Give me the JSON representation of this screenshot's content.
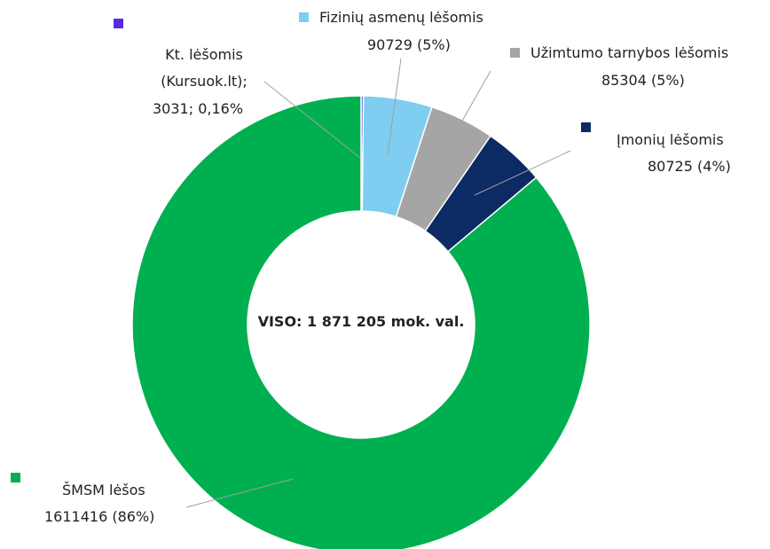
{
  "chart_data": {
    "type": "donut",
    "categories": [
      "Kt. lėšomis (Kursuok.lt);",
      "Fizinių asmenų lėšomis",
      "Užimtumo tarnybos lėšomis",
      "Įmonių lėšomis",
      "ŠMSM lėšos"
    ],
    "values": [
      3031,
      90729,
      85304,
      80725,
      1611416
    ],
    "value_labels": [
      "3031; 0,16%",
      "90729 (5%)",
      "85304 (5%)",
      "80725 (4%)",
      "1611416 (86%)"
    ],
    "colors": [
      "#5a2be6",
      "#7fcdf0",
      "#a5a5a5",
      "#0c2a63",
      "#00b050"
    ],
    "center_label": "VISO: 1 871 205 mok. val."
  }
}
